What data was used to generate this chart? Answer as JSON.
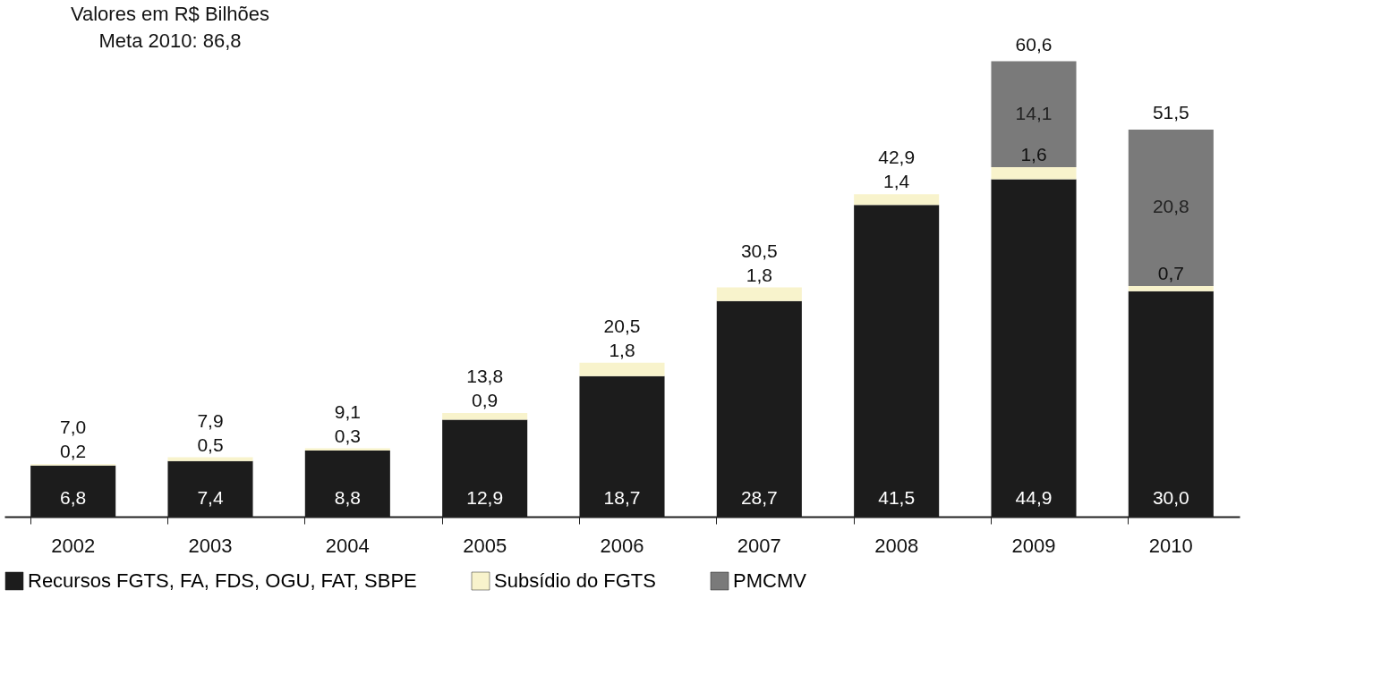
{
  "chart_data": {
    "type": "bar",
    "stacked": true,
    "categories": [
      "2002",
      "2003",
      "2004",
      "2005",
      "2006",
      "2007",
      "2008",
      "2009",
      "2010"
    ],
    "series": [
      {
        "name": "Recursos FGTS, FA, FDS, OGU, FAT, SBPE",
        "color": "#1c1c1c",
        "values": [
          6.8,
          7.4,
          8.8,
          12.9,
          18.7,
          28.7,
          41.5,
          44.9,
          30.0
        ],
        "value_labels": [
          "6,8",
          "7,4",
          "8,8",
          "12,9",
          "18,7",
          "28,7",
          "41,5",
          "44,9",
          "30,0"
        ]
      },
      {
        "name": "Subsídio do FGTS",
        "color": "#f8f3cc",
        "values": [
          0.2,
          0.5,
          0.3,
          0.9,
          1.8,
          1.8,
          1.4,
          1.6,
          0.7
        ],
        "value_labels": [
          "0,2",
          "0,5",
          "0,3",
          "0,9",
          "1,8",
          "1,8",
          "1,4",
          "1,6",
          "0,7"
        ]
      },
      {
        "name": "PMCMV",
        "color": "#7a7a7a",
        "values": [
          null,
          null,
          null,
          null,
          null,
          null,
          null,
          14.1,
          20.8
        ],
        "value_labels": [
          null,
          null,
          null,
          null,
          null,
          null,
          null,
          "14,1",
          "20,8"
        ]
      }
    ],
    "totals": [
      "7,0",
      "7,9",
      "9,1",
      "13,8",
      "20,5",
      "30,5",
      "42,9",
      "60,6",
      "51,5"
    ],
    "annotations": [
      "Valores em R$ Bilhões",
      "Meta 2010: 86,8"
    ],
    "legend": "bottom",
    "grid": false
  }
}
